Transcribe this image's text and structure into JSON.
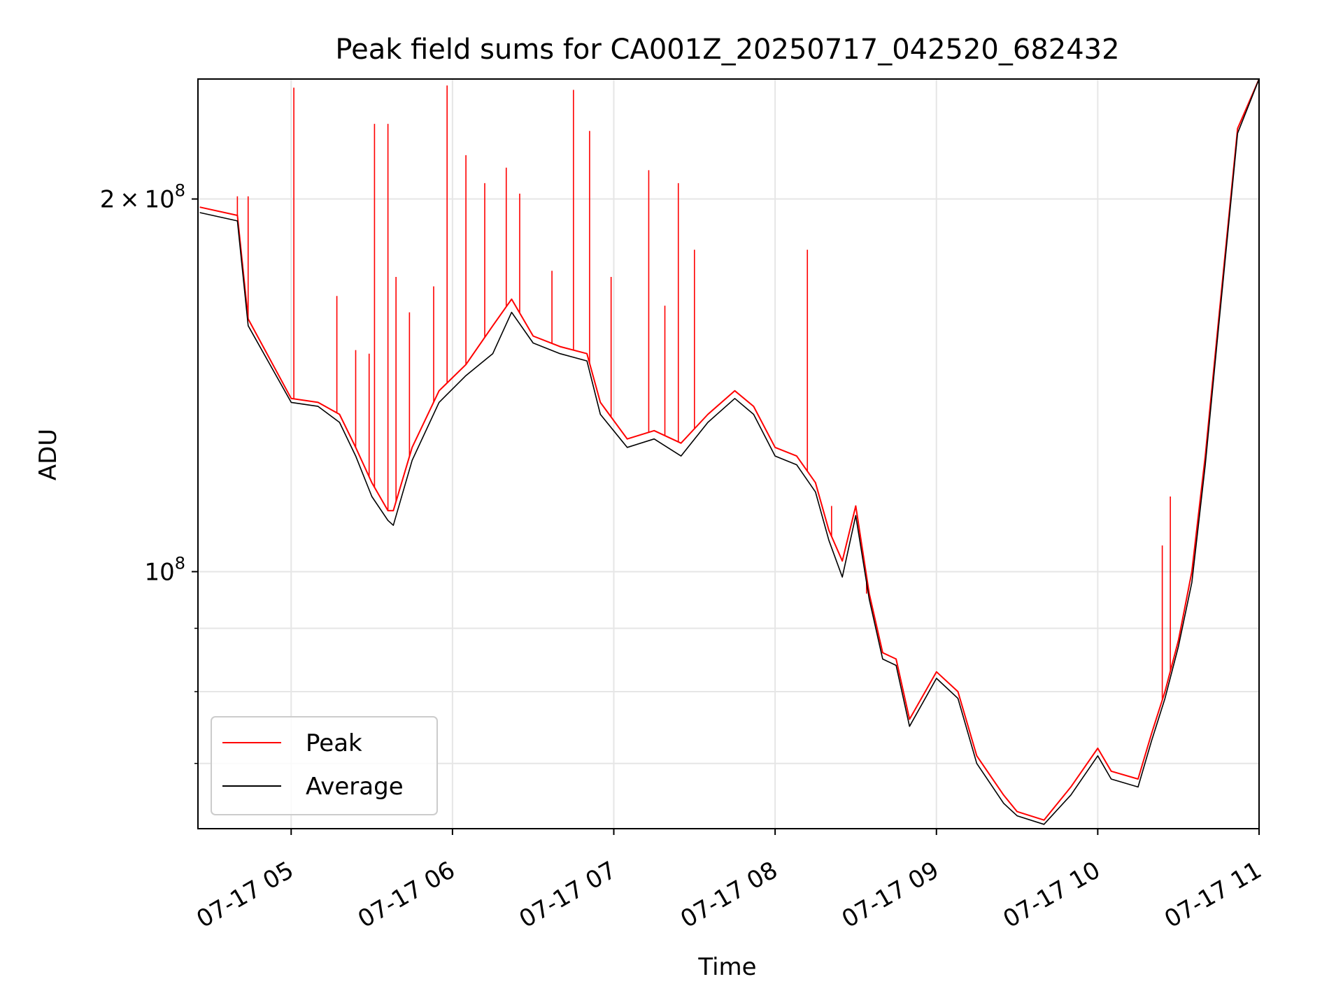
{
  "chart_data": {
    "type": "line",
    "title": "Peak field sums for CA001Z_20250717_042520_682432",
    "xlabel": "Time",
    "ylabel": "ADU",
    "x_range": [
      "2025-07-17T04:25:20",
      "2025-07-17T11:00:00"
    ],
    "y_range": [
      62000000,
      250000000
    ],
    "y_scale": "log",
    "grid": true,
    "legend_position": "lower left",
    "x_ticks": [
      "07-17 05",
      "07-17 06",
      "07-17 07",
      "07-17 08",
      "07-17 09",
      "07-17 10",
      "07-17 11"
    ],
    "x_tick_times": [
      "2025-07-17T05:00",
      "2025-07-17T06:00",
      "2025-07-17T07:00",
      "2025-07-17T08:00",
      "2025-07-17T09:00",
      "2025-07-17T10:00",
      "2025-07-17T11:00"
    ],
    "y_ticks": [
      {
        "value": 200000000,
        "mantissa": "2",
        "times": "×",
        "base": "10",
        "exp": "8"
      },
      {
        "value": 100000000,
        "mantissa": "",
        "times": "",
        "base": "10",
        "exp": "8"
      }
    ],
    "y_minor_ticks": [
      60000000,
      70000000,
      80000000,
      90000000
    ],
    "series": [
      {
        "name": "Peak",
        "color": "#ff0000",
        "x": [
          "2025-07-17T04:26",
          "2025-07-17T04:40",
          "2025-07-17T04:44",
          "2025-07-17T05:00",
          "2025-07-17T05:10",
          "2025-07-17T05:18",
          "2025-07-17T05:24",
          "2025-07-17T05:30",
          "2025-07-17T05:36",
          "2025-07-17T05:38",
          "2025-07-17T05:45",
          "2025-07-17T05:55",
          "2025-07-17T06:05",
          "2025-07-17T06:15",
          "2025-07-17T06:22",
          "2025-07-17T06:30",
          "2025-07-17T06:40",
          "2025-07-17T06:50",
          "2025-07-17T06:55",
          "2025-07-17T07:05",
          "2025-07-17T07:15",
          "2025-07-17T07:25",
          "2025-07-17T07:35",
          "2025-07-17T07:45",
          "2025-07-17T07:52",
          "2025-07-17T08:00",
          "2025-07-17T08:08",
          "2025-07-17T08:15",
          "2025-07-17T08:20",
          "2025-07-17T08:25",
          "2025-07-17T08:30",
          "2025-07-17T08:35",
          "2025-07-17T08:40",
          "2025-07-17T08:45",
          "2025-07-17T08:50",
          "2025-07-17T09:00",
          "2025-07-17T09:08",
          "2025-07-17T09:15",
          "2025-07-17T09:25",
          "2025-07-17T09:30",
          "2025-07-17T09:40",
          "2025-07-17T09:50",
          "2025-07-17T10:00",
          "2025-07-17T10:05",
          "2025-07-17T10:15",
          "2025-07-17T10:20",
          "2025-07-17T10:25",
          "2025-07-17T10:30",
          "2025-07-17T10:35",
          "2025-07-17T10:40",
          "2025-07-17T10:45",
          "2025-07-17T10:52",
          "2025-07-17T11:00"
        ],
        "y": [
          197000000,
          194000000,
          160000000,
          138000000,
          137000000,
          134000000,
          126000000,
          118000000,
          112000000,
          112000000,
          126000000,
          140000000,
          147000000,
          158000000,
          166000000,
          155000000,
          152000000,
          150000000,
          137000000,
          128000000,
          130000000,
          127000000,
          134000000,
          140000000,
          136000000,
          126000000,
          124000000,
          118000000,
          108000000,
          102000000,
          113000000,
          96000000,
          86000000,
          85000000,
          76000000,
          83000000,
          80000000,
          71000000,
          66000000,
          64000000,
          63000000,
          67000000,
          72000000,
          69000000,
          68000000,
          74000000,
          80000000,
          88000000,
          100000000,
          124000000,
          160000000,
          228000000,
          250000000
        ],
        "spikes": [
          {
            "x": "2025-07-17T04:40",
            "y": 201000000
          },
          {
            "x": "2025-07-17T04:44",
            "y": 201000000
          },
          {
            "x": "2025-07-17T05:01",
            "y": 246000000
          },
          {
            "x": "2025-07-17T05:17",
            "y": 167000000
          },
          {
            "x": "2025-07-17T05:24",
            "y": 151000000
          },
          {
            "x": "2025-07-17T05:29",
            "y": 150000000
          },
          {
            "x": "2025-07-17T05:31",
            "y": 230000000
          },
          {
            "x": "2025-07-17T05:36",
            "y": 230000000
          },
          {
            "x": "2025-07-17T05:39",
            "y": 173000000
          },
          {
            "x": "2025-07-17T05:44",
            "y": 162000000
          },
          {
            "x": "2025-07-17T05:53",
            "y": 170000000
          },
          {
            "x": "2025-07-17T05:58",
            "y": 247000000
          },
          {
            "x": "2025-07-17T06:05",
            "y": 217000000
          },
          {
            "x": "2025-07-17T06:12",
            "y": 206000000
          },
          {
            "x": "2025-07-17T06:20",
            "y": 212000000
          },
          {
            "x": "2025-07-17T06:25",
            "y": 202000000
          },
          {
            "x": "2025-07-17T06:37",
            "y": 175000000
          },
          {
            "x": "2025-07-17T06:45",
            "y": 245000000
          },
          {
            "x": "2025-07-17T06:51",
            "y": 227000000
          },
          {
            "x": "2025-07-17T06:59",
            "y": 173000000
          },
          {
            "x": "2025-07-17T07:13",
            "y": 211000000
          },
          {
            "x": "2025-07-17T07:19",
            "y": 164000000
          },
          {
            "x": "2025-07-17T07:24",
            "y": 206000000
          },
          {
            "x": "2025-07-17T07:30",
            "y": 182000000
          },
          {
            "x": "2025-07-17T08:12",
            "y": 182000000
          },
          {
            "x": "2025-07-17T08:21",
            "y": 113000000
          },
          {
            "x": "2025-07-17T08:34",
            "y": 96000000
          },
          {
            "x": "2025-07-17T10:24",
            "y": 105000000
          },
          {
            "x": "2025-07-17T10:27",
            "y": 115000000
          }
        ]
      },
      {
        "name": "Average",
        "color": "#000000",
        "x": [
          "2025-07-17T04:26",
          "2025-07-17T04:40",
          "2025-07-17T04:44",
          "2025-07-17T05:00",
          "2025-07-17T05:10",
          "2025-07-17T05:18",
          "2025-07-17T05:24",
          "2025-07-17T05:30",
          "2025-07-17T05:36",
          "2025-07-17T05:38",
          "2025-07-17T05:45",
          "2025-07-17T05:55",
          "2025-07-17T06:05",
          "2025-07-17T06:15",
          "2025-07-17T06:22",
          "2025-07-17T06:30",
          "2025-07-17T06:40",
          "2025-07-17T06:50",
          "2025-07-17T06:55",
          "2025-07-17T07:05",
          "2025-07-17T07:15",
          "2025-07-17T07:25",
          "2025-07-17T07:35",
          "2025-07-17T07:45",
          "2025-07-17T07:52",
          "2025-07-17T08:00",
          "2025-07-17T08:08",
          "2025-07-17T08:15",
          "2025-07-17T08:20",
          "2025-07-17T08:25",
          "2025-07-17T08:30",
          "2025-07-17T08:35",
          "2025-07-17T08:40",
          "2025-07-17T08:45",
          "2025-07-17T08:50",
          "2025-07-17T09:00",
          "2025-07-17T09:08",
          "2025-07-17T09:15",
          "2025-07-17T09:25",
          "2025-07-17T09:30",
          "2025-07-17T09:40",
          "2025-07-17T09:50",
          "2025-07-17T10:00",
          "2025-07-17T10:05",
          "2025-07-17T10:15",
          "2025-07-17T10:20",
          "2025-07-17T10:25",
          "2025-07-17T10:30",
          "2025-07-17T10:35",
          "2025-07-17T10:40",
          "2025-07-17T10:45",
          "2025-07-17T10:52",
          "2025-07-17T11:00"
        ],
        "y": [
          195000000,
          192000000,
          158000000,
          137000000,
          136000000,
          132000000,
          124000000,
          115000000,
          110000000,
          109000000,
          123000000,
          137000000,
          144000000,
          150000000,
          162000000,
          153000000,
          150000000,
          148000000,
          134000000,
          126000000,
          128000000,
          124000000,
          132000000,
          138000000,
          134000000,
          124000000,
          122000000,
          116000000,
          106000000,
          99000000,
          111000000,
          95000000,
          85000000,
          84000000,
          75000000,
          82000000,
          79000000,
          70000000,
          65000000,
          63500000,
          62500000,
          66000000,
          71000000,
          68000000,
          67000000,
          73000000,
          79000000,
          87000000,
          98000000,
          122000000,
          158000000,
          226000000,
          250000000
        ]
      }
    ]
  }
}
